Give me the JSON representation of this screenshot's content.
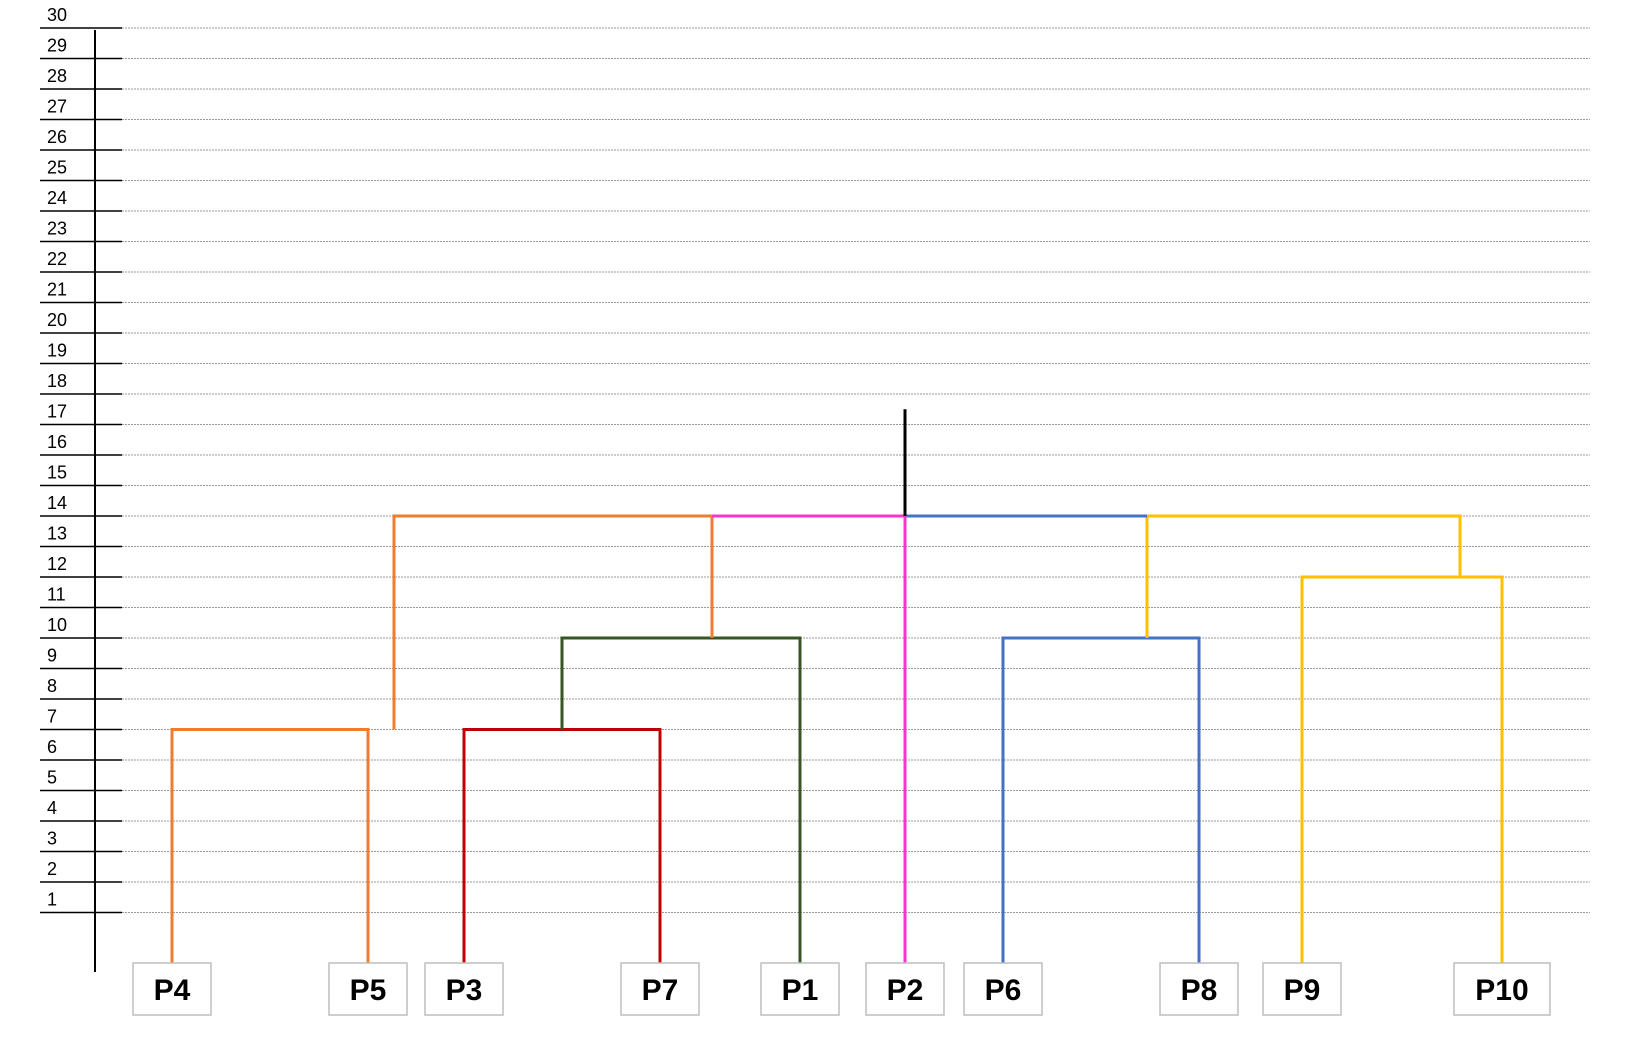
{
  "chart_data": {
    "type": "dendrogram",
    "y_ticks": [
      "1",
      "2",
      "3",
      "4",
      "5",
      "6",
      "7",
      "8",
      "9",
      "10",
      "11",
      "12",
      "13",
      "14",
      "15",
      "16",
      "17",
      "18",
      "19",
      "20",
      "21",
      "22",
      "23",
      "24",
      "25",
      "26",
      "27",
      "28",
      "29",
      "30"
    ],
    "ylim": [
      0,
      30
    ],
    "grid": true,
    "leaves": [
      "P4",
      "P5",
      "P3",
      "P7",
      "P1",
      "P2",
      "P6",
      "P8",
      "P9",
      "P10"
    ],
    "merges": [
      {
        "left": "P4",
        "right": "P5",
        "height": 7,
        "color": "#ED7D31"
      },
      {
        "left": "P3",
        "right": "P7",
        "height": 7,
        "color": "#C00000"
      },
      {
        "left": "P3+P7",
        "right": "P1",
        "height": 10,
        "color": "#375623"
      },
      {
        "left": "P4+P5",
        "right": "P3+P7+P1",
        "height": 14,
        "color": "#ED7D31"
      },
      {
        "left": "P6",
        "right": "P8",
        "height": 10,
        "color": "#4472C4"
      },
      {
        "left": "P9",
        "right": "P10",
        "height": 12,
        "color": "#FFC000"
      },
      {
        "left": "P6+P8",
        "right": "P9+P10",
        "height": 14,
        "color": "#FFC000"
      },
      {
        "left": "P4+P5+P3+P7+P1",
        "right": "P2",
        "height": 14,
        "color": "#FF33CC"
      },
      {
        "left": "P6+P8+P9+P10",
        "right": "P2",
        "height": 14,
        "color": "#4472C4"
      }
    ],
    "root_height": 17.5,
    "colors": {
      "orange": "#ED7D31",
      "red": "#C00000",
      "dark_green": "#375623",
      "magenta": "#FF33CC",
      "blue": "#4472C4",
      "yellow": "#FFC000",
      "root": "#000000"
    }
  }
}
